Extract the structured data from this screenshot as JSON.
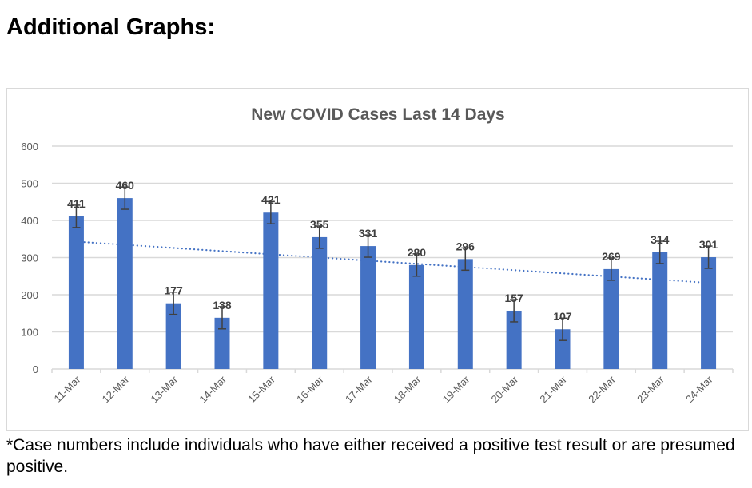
{
  "page": {
    "heading": "Additional Graphs:",
    "footnote": "*Case numbers include individuals who have either received a positive test result or are presumed positive."
  },
  "colors": {
    "bar": "#4472c4",
    "trend": "#4472c4",
    "grid": "#d9d9d9",
    "error_bar": "#404040",
    "label": "#404040"
  },
  "chart_data": {
    "type": "bar",
    "title": "New COVID Cases Last 14 Days",
    "xlabel": "",
    "ylabel": "",
    "ylim": [
      0,
      600
    ],
    "yticks": [
      0,
      100,
      200,
      300,
      400,
      500,
      600
    ],
    "ytick_labels": [
      "0",
      "100",
      "200",
      "300",
      "400",
      "500",
      "600"
    ],
    "grid": true,
    "categories": [
      "11-Mar",
      "12-Mar",
      "13-Mar",
      "14-Mar",
      "15-Mar",
      "16-Mar",
      "17-Mar",
      "18-Mar",
      "19-Mar",
      "20-Mar",
      "21-Mar",
      "22-Mar",
      "23-Mar",
      "24-Mar"
    ],
    "values": [
      411,
      460,
      177,
      138,
      421,
      355,
      331,
      280,
      296,
      157,
      107,
      269,
      314,
      301
    ],
    "data_labels": [
      "411",
      "460",
      "177",
      "138",
      "421",
      "355",
      "331",
      "280",
      "296",
      "157",
      "107",
      "269",
      "314",
      "301"
    ],
    "error_bar": 30,
    "trendline": {
      "type": "linear",
      "style": "dotted",
      "start": 343,
      "end": 232
    }
  }
}
